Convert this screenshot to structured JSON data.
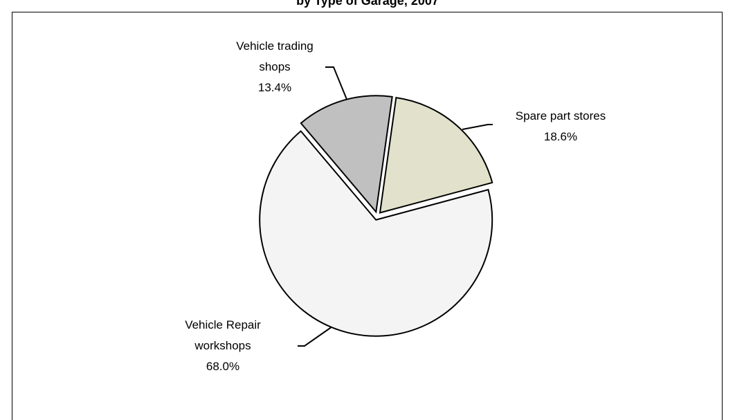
{
  "chart_data": {
    "type": "pie",
    "title": "by Type of Garage, 2007",
    "categories": [
      "Spare part stores",
      "Vehicle Repair workshops",
      "Vehicle trading shops"
    ],
    "values": [
      18.6,
      68.0,
      13.4
    ],
    "value_labels": [
      "18.6%",
      "68.0%",
      "13.4%"
    ],
    "colors": [
      "#e2e2cc",
      "#f4f4f4",
      "#c0c0c0"
    ]
  }
}
